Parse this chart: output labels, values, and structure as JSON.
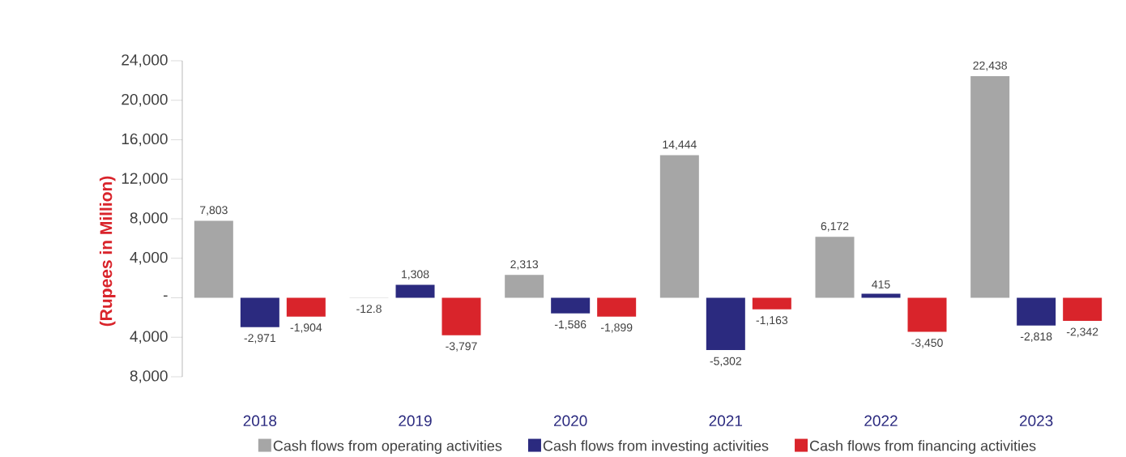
{
  "chart_data": {
    "type": "bar",
    "ylabel": "(Rupees in Million)",
    "categories": [
      "2018",
      "2019",
      "2020",
      "2021",
      "2022",
      "2023"
    ],
    "series": [
      {
        "name": "Cash flows from operating activities",
        "color": "#a6a6a6",
        "values": [
          7803,
          -12.8,
          2313,
          14444,
          6172,
          22438
        ],
        "value_labels": [
          "7,803",
          "-12.8",
          "2,313",
          "14,444",
          "6,172",
          "22,438"
        ]
      },
      {
        "name": "Cash flows from investing activities",
        "color": "#2b2a7f",
        "values": [
          -2971,
          1308,
          -1586,
          -5302,
          415,
          -2818
        ],
        "value_labels": [
          "-2,971",
          "1,308",
          "-1,586",
          "-5,302",
          "415",
          "-2,818"
        ]
      },
      {
        "name": "Cash flows from financing activities",
        "color": "#d9242b",
        "values": [
          -1904,
          -3797,
          -1899,
          -1163,
          -3450,
          -2342
        ],
        "value_labels": [
          "-1,904",
          "-3,797",
          "-1,899",
          "-1,163",
          "-3,450",
          "-2,342"
        ]
      }
    ],
    "ylim": [
      -8000,
      24000
    ],
    "yticks": [
      {
        "value": 24000,
        "label": "24,000"
      },
      {
        "value": 20000,
        "label": "20,000"
      },
      {
        "value": 16000,
        "label": "16,000"
      },
      {
        "value": 12000,
        "label": "12,000"
      },
      {
        "value": 8000,
        "label": "8,000"
      },
      {
        "value": 4000,
        "label": "4,000"
      },
      {
        "value": 0,
        "label": "-"
      },
      {
        "value": -4000,
        "label": "4,000"
      },
      {
        "value": -8000,
        "label": "8,000"
      }
    ],
    "legend": "bottom",
    "grid": false
  }
}
